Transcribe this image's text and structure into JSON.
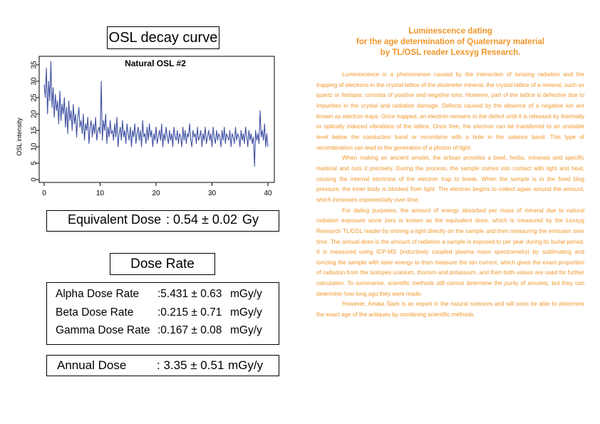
{
  "left": {
    "osl_title": "OSL decay curve",
    "equivalent_dose": {
      "label": "Equivalent Dose",
      "value": ": 0.54 ± 0.02",
      "unit": "Gy"
    },
    "dose_rate_title": "Dose Rate",
    "dose_rates": [
      {
        "label": "Alpha Dose Rate",
        "value": ":5.431 ± 0.63",
        "unit": "mGy/y"
      },
      {
        "label": "Beta Dose Rate",
        "value": ":0.215 ± 0.71",
        "unit": "mGy/y"
      },
      {
        "label": "Gamma Dose Rate",
        "value": ":0.167 ± 0.08",
        "unit": "mGy/y"
      }
    ],
    "annual_dose": {
      "label": "Annual Dose",
      "value": ": 3.35 ± 0.51",
      "unit": "mGy/y"
    }
  },
  "right": {
    "title_lines": [
      "Luminescence dating",
      "for the age determination of Quaternary material",
      "by TL/OSL reader Lexsyg Research."
    ],
    "paragraphs": [
      "Luminescence is a phenomenon caused by the interaction of ionising radiation and the trapping of electrons in the crystal lattice of the dosimeter mineral. the crystal lattice of a mineral, such as quartz or feldspar, consists of positive and negative ions. However, part of the lattice is defective due to impurities in the crystal and radiation damage. Defects caused by the absence of a negative ion are known as electron traps. Once trapped, an electron remains in the defect until it is released by thermally or optically induced vibrations of the lattice. Once free, the electron can be transferred to an unstable level below the conduction band or recombine with a hole in the valence band. This type of recombination can lead to the generation of a photon of light.",
      "When making an ancient amulet, the artisan provides a bowl, herbs, minerals and specific material and cuts it precisely. During the process, the sample comes into contact with light and heat, causing the internal electrons of the electron trap to break. When the sample is in the fixed blog pressure, the inner body is blocked from light. The electron begins to collect again around the amount, which increases exponentially over time.",
      "For dating purposes, the amount of energy absorbed per mass of mineral due to natural radiation exposure since zero is known as the equivalent dose, which is measured by the Lexsyg Research TL/OSL reader by shining a light directly on the sample and then measuring the emission over time. The annual dose is the amount of radiation a sample is exposed to per year during its burial period. It is measured using ICP-MS (inductively coupled plasma mass spectrometry) by sublimating and ionizing the sample with laser energy to then measure the ion current, which gives the exact proportion of radiation from the isotopes uranium, thorium and potassium, and then both values are used for further calculation. To summarise, scientific methods still cannot determine the purity of amulets, but they can determine how long ago they were made.",
      "However, Amata Siam is an expert in the natural sciences and will soon be able to determine the exact age of the antiques by combining scientific methods."
    ]
  },
  "chart_data": {
    "type": "line",
    "title": "Natural OSL #2",
    "xlabel": "",
    "ylabel": "OSL intensity",
    "xlim": [
      0,
      40
    ],
    "ylim": [
      0,
      35
    ],
    "xticks": [
      0,
      10,
      20,
      30,
      40
    ],
    "yticks": [
      0,
      5,
      10,
      15,
      20,
      25,
      30,
      35
    ],
    "grid": false,
    "line_color": "#3f51a3",
    "series": [
      {
        "x": [
          0.0,
          0.2,
          0.4,
          0.6,
          0.8,
          1.0,
          1.2,
          1.4,
          1.6,
          1.8,
          2.0,
          2.2,
          2.4,
          2.6,
          2.8,
          3.0,
          3.2,
          3.4,
          3.6,
          3.8,
          4.0,
          4.2,
          4.4,
          4.6,
          4.8,
          5.0,
          5.2,
          5.4,
          5.6,
          5.8,
          6.0,
          6.2,
          6.4,
          6.6,
          6.8,
          7.0,
          7.2,
          7.4,
          7.6,
          7.8,
          8.0,
          8.2,
          8.4,
          8.6,
          8.8,
          9.0,
          9.2,
          9.4,
          9.6,
          9.8,
          10.0,
          10.2,
          10.4,
          10.6,
          10.8,
          11.0,
          11.2,
          11.4,
          11.6,
          11.8,
          12.0,
          12.2,
          12.4,
          12.6,
          12.8,
          13.0,
          13.2,
          13.4,
          13.6,
          13.8,
          14.0,
          14.2,
          14.4,
          14.6,
          14.8,
          15.0,
          15.2,
          15.4,
          15.6,
          15.8,
          16.0,
          16.2,
          16.4,
          16.6,
          16.8,
          17.0,
          17.2,
          17.4,
          17.6,
          17.8,
          18.0,
          18.2,
          18.4,
          18.6,
          18.8,
          19.0,
          19.2,
          19.4,
          19.6,
          19.8,
          20.0,
          20.2,
          20.4,
          20.6,
          20.8,
          21.0,
          21.2,
          21.4,
          21.6,
          21.8,
          22.0,
          22.2,
          22.4,
          22.6,
          22.8,
          23.0,
          23.2,
          23.4,
          23.6,
          23.8,
          24.0,
          24.2,
          24.4,
          24.6,
          24.8,
          25.0,
          25.2,
          25.4,
          25.6,
          25.8,
          26.0,
          26.2,
          26.4,
          26.6,
          26.8,
          27.0,
          27.2,
          27.4,
          27.6,
          27.8,
          28.0,
          28.2,
          28.4,
          28.6,
          28.8,
          29.0,
          29.2,
          29.4,
          29.6,
          29.8,
          30.0,
          30.2,
          30.4,
          30.6,
          30.8,
          31.0,
          31.2,
          31.4,
          31.6,
          31.8,
          32.0,
          32.2,
          32.4,
          32.6,
          32.8,
          33.0,
          33.2,
          33.4,
          33.6,
          33.8,
          34.0,
          34.2,
          34.4,
          34.6,
          34.8,
          35.0,
          35.2,
          35.4,
          35.6,
          35.8,
          36.0,
          36.2,
          36.4,
          36.6,
          36.8,
          37.0,
          37.2,
          37.4,
          37.6,
          37.8,
          38.0,
          38.2,
          38.4,
          38.6,
          38.8,
          39.0,
          39.2,
          39.4,
          39.6,
          39.8,
          40.0
        ],
        "y": [
          29,
          25,
          34,
          20,
          30,
          24,
          36,
          22,
          28,
          19,
          26,
          21,
          24,
          17,
          27,
          18,
          23,
          20,
          25,
          16,
          22,
          14,
          24,
          18,
          21,
          15,
          23,
          17,
          20,
          13,
          19,
          22,
          16,
          18,
          14,
          20,
          12,
          17,
          15,
          19,
          11,
          16,
          18,
          13,
          17,
          14,
          19,
          12,
          15,
          16,
          14,
          30,
          12,
          18,
          15,
          20,
          11,
          16,
          13,
          18,
          14,
          15,
          12,
          17,
          13,
          19,
          10,
          14,
          16,
          12,
          18,
          13,
          15,
          11,
          17,
          14,
          12,
          16,
          10,
          15,
          13,
          17,
          11,
          14,
          16,
          12,
          15,
          10,
          18,
          13,
          14,
          11,
          16,
          12,
          17,
          13,
          15,
          10,
          14,
          12,
          16,
          11,
          13,
          15,
          12,
          17,
          10,
          14,
          12,
          16,
          13,
          11,
          15,
          12,
          14,
          10,
          16,
          13,
          12,
          15,
          11,
          14,
          13,
          10,
          16,
          12,
          15,
          11,
          14,
          13,
          17,
          12,
          10,
          15,
          13,
          14,
          11,
          16,
          12,
          13,
          15,
          10,
          14,
          12,
          16,
          11,
          13,
          15,
          12,
          14,
          10,
          16,
          13,
          11,
          15,
          12,
          14,
          13,
          10,
          15,
          12,
          16,
          11,
          14,
          13,
          12,
          15,
          10,
          14,
          13,
          11,
          16,
          12,
          14,
          13,
          10,
          15,
          12,
          14,
          11,
          16,
          13,
          10,
          15,
          12,
          14,
          11,
          13,
          4,
          15,
          12,
          14,
          11,
          21,
          13,
          15,
          12,
          17,
          10,
          14,
          10
        ]
      }
    ]
  }
}
